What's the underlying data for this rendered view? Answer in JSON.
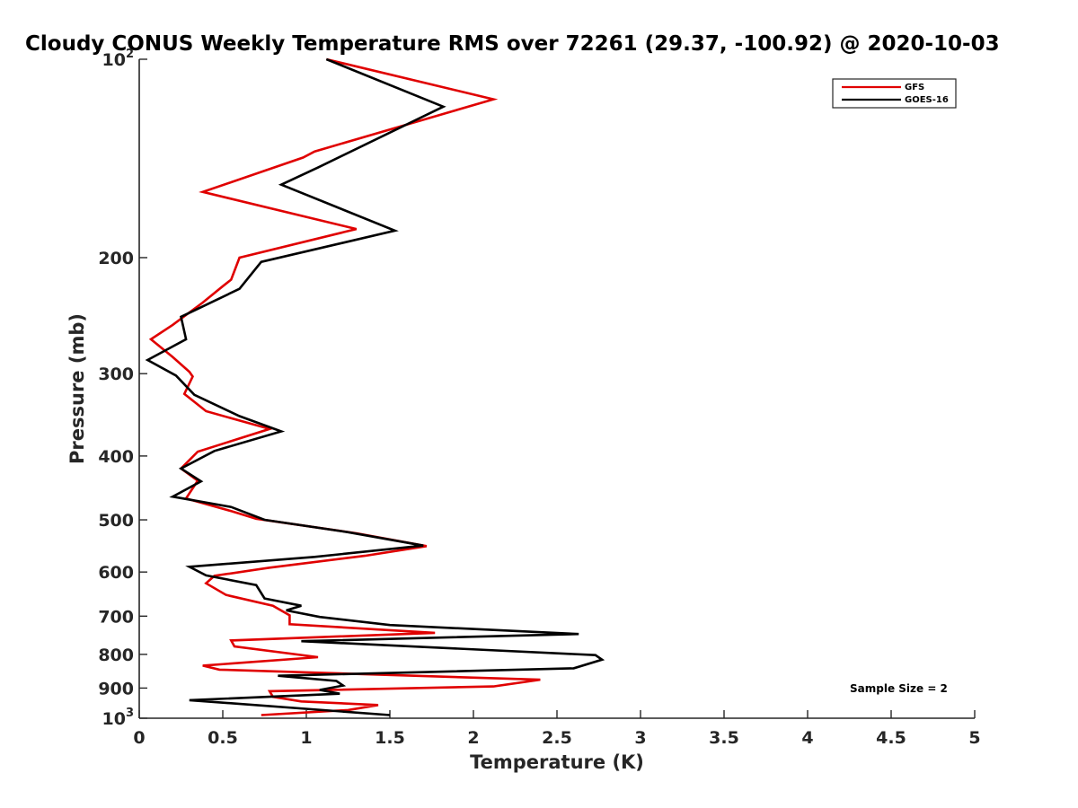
{
  "chart_data": {
    "type": "line",
    "title": "Cloudy CONUS Weekly Temperature RMS over 72261 (29.37, -100.92) @ 2020-10-03",
    "xlabel": "Temperature (K)",
    "ylabel": "Pressure (mb)",
    "xlim": [
      0,
      5
    ],
    "ylim": [
      100,
      1000
    ],
    "y_scale": "log",
    "y_reversed": true,
    "x_ticks": [
      0,
      0.5,
      1,
      1.5,
      2,
      2.5,
      3,
      3.5,
      4,
      4.5,
      5
    ],
    "x_tick_labels": [
      "0",
      "0.5",
      "1",
      "1.5",
      "2",
      "2.5",
      "3",
      "3.5",
      "4",
      "4.5",
      "5"
    ],
    "y_ticks": [
      100,
      200,
      300,
      400,
      500,
      600,
      700,
      800,
      900,
      1000
    ],
    "y_tick_labels": [
      {
        "base": "10",
        "exp": "2"
      },
      {
        "base": "200",
        "exp": ""
      },
      {
        "base": "300",
        "exp": ""
      },
      {
        "base": "400",
        "exp": ""
      },
      {
        "base": "500",
        "exp": ""
      },
      {
        "base": "600",
        "exp": ""
      },
      {
        "base": "700",
        "exp": ""
      },
      {
        "base": "800",
        "exp": ""
      },
      {
        "base": "900",
        "exp": ""
      },
      {
        "base": "10",
        "exp": "3"
      }
    ],
    "grid": false,
    "legend_position": "top-right",
    "annotation": "Sample Size = 2",
    "series": [
      {
        "name": "GFS",
        "color": "#e00000",
        "points": [
          [
            1.12,
            100
          ],
          [
            2.12,
            115
          ],
          [
            1.05,
            138
          ],
          [
            0.98,
            141
          ],
          [
            0.38,
            159
          ],
          [
            1.3,
            181
          ],
          [
            0.6,
            200
          ],
          [
            0.55,
            216
          ],
          [
            0.5,
            221
          ],
          [
            0.38,
            234
          ],
          [
            0.2,
            253
          ],
          [
            0.07,
            266
          ],
          [
            0.2,
            283
          ],
          [
            0.3,
            298
          ],
          [
            0.32,
            303
          ],
          [
            0.27,
            322
          ],
          [
            0.4,
            342
          ],
          [
            0.78,
            364
          ],
          [
            0.35,
            394
          ],
          [
            0.25,
            418
          ],
          [
            0.35,
            436
          ],
          [
            0.28,
            464
          ],
          [
            0.55,
            485
          ],
          [
            0.7,
            498
          ],
          [
            1.3,
            524
          ],
          [
            1.72,
            548
          ],
          [
            1.35,
            567
          ],
          [
            0.78,
            591
          ],
          [
            0.45,
            608
          ],
          [
            0.4,
            624
          ],
          [
            0.52,
            650
          ],
          [
            0.8,
            675
          ],
          [
            0.9,
            698
          ],
          [
            0.9,
            720
          ],
          [
            1.77,
            742
          ],
          [
            0.55,
            762
          ],
          [
            0.57,
            778
          ],
          [
            1.07,
            808
          ],
          [
            0.38,
            832
          ],
          [
            0.48,
            844
          ],
          [
            2.4,
            874
          ],
          [
            2.12,
            895
          ],
          [
            0.78,
            910
          ],
          [
            0.8,
            928
          ],
          [
            0.97,
            943
          ],
          [
            1.43,
            955
          ],
          [
            1.25,
            972
          ],
          [
            0.73,
            989
          ]
        ]
      },
      {
        "name": "GOES-16",
        "color": "#000000",
        "points": [
          [
            1.12,
            100
          ],
          [
            1.82,
            118
          ],
          [
            1.07,
            146
          ],
          [
            0.85,
            155
          ],
          [
            1.53,
            182
          ],
          [
            0.73,
            203
          ],
          [
            0.6,
            223
          ],
          [
            0.25,
            246
          ],
          [
            0.28,
            266
          ],
          [
            0.05,
            286
          ],
          [
            0.22,
            302
          ],
          [
            0.33,
            323
          ],
          [
            0.6,
            348
          ],
          [
            0.85,
            367
          ],
          [
            0.45,
            393
          ],
          [
            0.25,
            418
          ],
          [
            0.37,
            437
          ],
          [
            0.2,
            461
          ],
          [
            0.55,
            478
          ],
          [
            0.75,
            500
          ],
          [
            1.25,
            522
          ],
          [
            1.7,
            547
          ],
          [
            1.05,
            569
          ],
          [
            0.3,
            589
          ],
          [
            0.4,
            607
          ],
          [
            0.7,
            628
          ],
          [
            0.75,
            658
          ],
          [
            0.97,
            675
          ],
          [
            0.88,
            686
          ],
          [
            1.08,
            702
          ],
          [
            1.5,
            722
          ],
          [
            2.63,
            745
          ],
          [
            0.97,
            764
          ],
          [
            2.73,
            802
          ],
          [
            2.77,
            815
          ],
          [
            2.6,
            840
          ],
          [
            0.83,
            862
          ],
          [
            1.18,
            878
          ],
          [
            1.22,
            892
          ],
          [
            1.08,
            906
          ],
          [
            1.2,
            918
          ],
          [
            0.3,
            939
          ],
          [
            1.5,
            989
          ]
        ]
      }
    ]
  }
}
